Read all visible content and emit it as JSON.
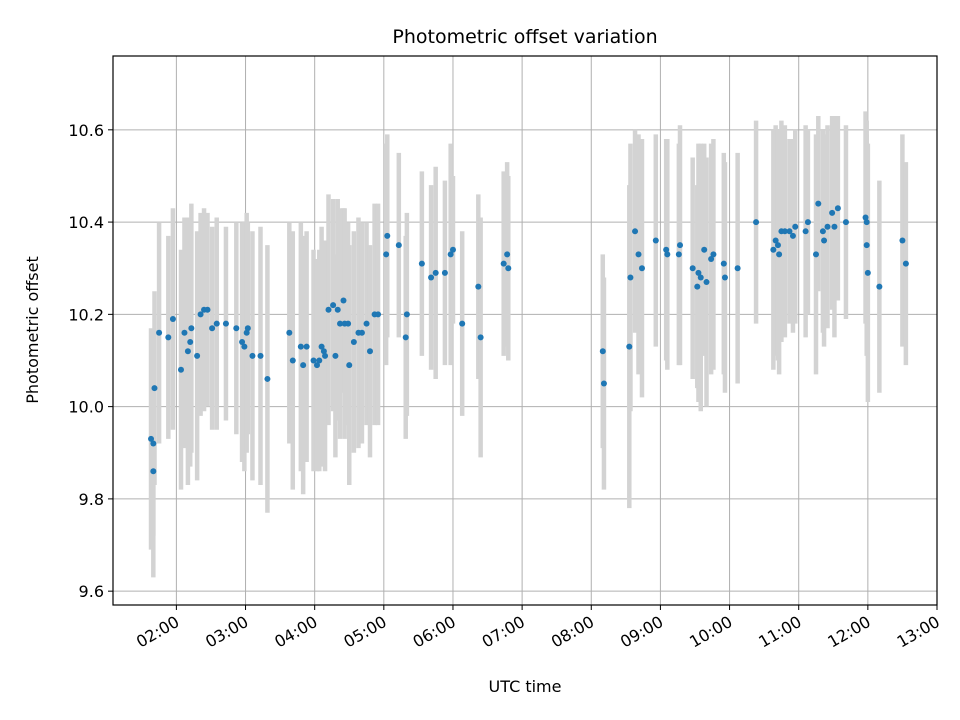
{
  "chart_data": {
    "type": "scatter",
    "title": "Photometric offset variation",
    "xlabel": "UTC time",
    "ylabel": "Photometric offset",
    "grid": true,
    "x_tick_labels": [
      "02:00",
      "03:00",
      "04:00",
      "05:00",
      "06:00",
      "07:00",
      "08:00",
      "09:00",
      "10:00",
      "11:00",
      "12:00",
      "13:00"
    ],
    "y_ticks": [
      9.6,
      9.8,
      10.0,
      10.2,
      10.4,
      10.6
    ],
    "y_tick_labels": [
      "9.6",
      "9.8",
      "10.0",
      "10.2",
      "10.4",
      "10.6"
    ],
    "xlim": [
      "01:05",
      "13:00"
    ],
    "ylim": [
      9.57,
      10.76
    ],
    "colors": {
      "points": "#1f77b4",
      "errorbars": "#d3d3d3",
      "grid": "#b0b0b0"
    },
    "series": [
      {
        "points": [
          {
            "x": "01:38",
            "y": 9.93,
            "err": 0.24
          },
          {
            "x": "01:40",
            "y": 9.92,
            "err": 0.2
          },
          {
            "x": "01:40",
            "y": 9.86,
            "err": 0.23
          },
          {
            "x": "01:41",
            "y": 10.04,
            "err": 0.21
          },
          {
            "x": "01:45",
            "y": 10.16,
            "err": 0.24
          },
          {
            "x": "01:53",
            "y": 10.15,
            "err": 0.22
          },
          {
            "x": "01:57",
            "y": 10.19,
            "err": 0.24
          },
          {
            "x": "02:04",
            "y": 10.08,
            "err": 0.26
          },
          {
            "x": "02:07",
            "y": 10.16,
            "err": 0.25
          },
          {
            "x": "02:10",
            "y": 10.12,
            "err": 0.29
          },
          {
            "x": "02:12",
            "y": 10.14,
            "err": 0.27
          },
          {
            "x": "02:13",
            "y": 10.17,
            "err": 0.27
          },
          {
            "x": "02:18",
            "y": 10.11,
            "err": 0.27
          },
          {
            "x": "02:21",
            "y": 10.2,
            "err": 0.22
          },
          {
            "x": "02:24",
            "y": 10.21,
            "err": 0.22
          },
          {
            "x": "02:27",
            "y": 10.21,
            "err": 0.21
          },
          {
            "x": "02:31",
            "y": 10.17,
            "err": 0.22
          },
          {
            "x": "02:35",
            "y": 10.18,
            "err": 0.23
          },
          {
            "x": "02:43",
            "y": 10.18,
            "err": 0.21
          },
          {
            "x": "02:52",
            "y": 10.17,
            "err": 0.23
          },
          {
            "x": "02:57",
            "y": 10.14,
            "err": 0.26
          },
          {
            "x": "02:59",
            "y": 10.13,
            "err": 0.27
          },
          {
            "x": "03:01",
            "y": 10.16,
            "err": 0.26
          },
          {
            "x": "03:02",
            "y": 10.17,
            "err": 0.23
          },
          {
            "x": "03:06",
            "y": 10.11,
            "err": 0.27
          },
          {
            "x": "03:13",
            "y": 10.11,
            "err": 0.28
          },
          {
            "x": "03:19",
            "y": 10.06,
            "err": 0.29
          },
          {
            "x": "03:38",
            "y": 10.16,
            "err": 0.24
          },
          {
            "x": "03:41",
            "y": 10.1,
            "err": 0.28
          },
          {
            "x": "03:48",
            "y": 10.13,
            "err": 0.27
          },
          {
            "x": "03:50",
            "y": 10.09,
            "err": 0.28
          },
          {
            "x": "03:53",
            "y": 10.13,
            "err": 0.25
          },
          {
            "x": "03:59",
            "y": 10.1,
            "err": 0.24
          },
          {
            "x": "04:02",
            "y": 10.09,
            "err": 0.23
          },
          {
            "x": "04:04",
            "y": 10.1,
            "err": 0.24
          },
          {
            "x": "04:06",
            "y": 10.13,
            "err": 0.26
          },
          {
            "x": "04:08",
            "y": 10.12,
            "err": 0.24
          },
          {
            "x": "04:09",
            "y": 10.11,
            "err": 0.25
          },
          {
            "x": "04:12",
            "y": 10.21,
            "err": 0.25
          },
          {
            "x": "04:16",
            "y": 10.22,
            "err": 0.23
          },
          {
            "x": "04:18",
            "y": 10.11,
            "err": 0.22
          },
          {
            "x": "04:20",
            "y": 10.21,
            "err": 0.24
          },
          {
            "x": "04:22",
            "y": 10.18,
            "err": 0.25
          },
          {
            "x": "04:25",
            "y": 10.23,
            "err": 0.2
          },
          {
            "x": "04:26",
            "y": 10.18,
            "err": 0.25
          },
          {
            "x": "04:29",
            "y": 10.18,
            "err": 0.22
          },
          {
            "x": "04:30",
            "y": 10.09,
            "err": 0.26
          },
          {
            "x": "04:34",
            "y": 10.14,
            "err": 0.24
          },
          {
            "x": "04:38",
            "y": 10.16,
            "err": 0.25
          },
          {
            "x": "04:41",
            "y": 10.16,
            "err": 0.24
          },
          {
            "x": "04:45",
            "y": 10.18,
            "err": 0.22
          },
          {
            "x": "04:48",
            "y": 10.12,
            "err": 0.23
          },
          {
            "x": "04:52",
            "y": 10.2,
            "err": 0.24
          },
          {
            "x": "04:55",
            "y": 10.2,
            "err": 0.24
          },
          {
            "x": "05:02",
            "y": 10.33,
            "err": 0.24
          },
          {
            "x": "05:03",
            "y": 10.37,
            "err": 0.22
          },
          {
            "x": "05:13",
            "y": 10.35,
            "err": 0.2
          },
          {
            "x": "05:20",
            "y": 10.2,
            "err": 0.22
          },
          {
            "x": "05:19",
            "y": 10.15,
            "err": 0.22
          },
          {
            "x": "05:33",
            "y": 10.31,
            "err": 0.2
          },
          {
            "x": "05:41",
            "y": 10.28,
            "err": 0.2
          },
          {
            "x": "05:45",
            "y": 10.29,
            "err": 0.23
          },
          {
            "x": "05:53",
            "y": 10.29,
            "err": 0.2
          },
          {
            "x": "05:58",
            "y": 10.33,
            "err": 0.24
          },
          {
            "x": "06:00",
            "y": 10.34,
            "err": 0.16
          },
          {
            "x": "06:08",
            "y": 10.18,
            "err": 0.2
          },
          {
            "x": "06:22",
            "y": 10.26,
            "err": 0.2
          },
          {
            "x": "06:24",
            "y": 10.15,
            "err": 0.26
          },
          {
            "x": "06:44",
            "y": 10.31,
            "err": 0.2
          },
          {
            "x": "06:47",
            "y": 10.33,
            "err": 0.2
          },
          {
            "x": "06:48",
            "y": 10.3,
            "err": 0.2
          },
          {
            "x": "08:10",
            "y": 10.12,
            "err": 0.21
          },
          {
            "x": "08:11",
            "y": 10.05,
            "err": 0.23
          },
          {
            "x": "08:33",
            "y": 10.13,
            "err": 0.35
          },
          {
            "x": "08:34",
            "y": 10.28,
            "err": 0.29
          },
          {
            "x": "08:38",
            "y": 10.38,
            "err": 0.22
          },
          {
            "x": "08:41",
            "y": 10.33,
            "err": 0.26
          },
          {
            "x": "08:44",
            "y": 10.3,
            "err": 0.28
          },
          {
            "x": "08:56",
            "y": 10.36,
            "err": 0.23
          },
          {
            "x": "09:05",
            "y": 10.34,
            "err": 0.24
          },
          {
            "x": "09:06",
            "y": 10.33,
            "err": 0.25
          },
          {
            "x": "09:17",
            "y": 10.35,
            "err": 0.26
          },
          {
            "x": "09:16",
            "y": 10.33,
            "err": 0.24
          },
          {
            "x": "09:28",
            "y": 10.3,
            "err": 0.24
          },
          {
            "x": "09:32",
            "y": 10.26,
            "err": 0.22
          },
          {
            "x": "09:33",
            "y": 10.29,
            "err": 0.28
          },
          {
            "x": "09:35",
            "y": 10.28,
            "err": 0.29
          },
          {
            "x": "09:38",
            "y": 10.34,
            "err": 0.23
          },
          {
            "x": "09:40",
            "y": 10.27,
            "err": 0.27
          },
          {
            "x": "09:44",
            "y": 10.32,
            "err": 0.25
          },
          {
            "x": "09:46",
            "y": 10.33,
            "err": 0.25
          },
          {
            "x": "09:55",
            "y": 10.31,
            "err": 0.24
          },
          {
            "x": "09:56",
            "y": 10.28,
            "err": 0.25
          },
          {
            "x": "10:07",
            "y": 10.3,
            "err": 0.25
          },
          {
            "x": "10:23",
            "y": 10.4,
            "err": 0.22
          },
          {
            "x": "10:38",
            "y": 10.34,
            "err": 0.26
          },
          {
            "x": "10:40",
            "y": 10.36,
            "err": 0.25
          },
          {
            "x": "10:42",
            "y": 10.35,
            "err": 0.25
          },
          {
            "x": "10:43",
            "y": 10.33,
            "err": 0.26
          },
          {
            "x": "10:45",
            "y": 10.38,
            "err": 0.24
          },
          {
            "x": "10:48",
            "y": 10.38,
            "err": 0.23
          },
          {
            "x": "10:52",
            "y": 10.38,
            "err": 0.2
          },
          {
            "x": "10:55",
            "y": 10.37,
            "err": 0.21
          },
          {
            "x": "10:57",
            "y": 10.39,
            "err": 0.21
          },
          {
            "x": "11:06",
            "y": 10.38,
            "err": 0.23
          },
          {
            "x": "11:08",
            "y": 10.4,
            "err": 0.2
          },
          {
            "x": "11:15",
            "y": 10.33,
            "err": 0.26
          },
          {
            "x": "11:17",
            "y": 10.44,
            "err": 0.19
          },
          {
            "x": "11:21",
            "y": 10.38,
            "err": 0.22
          },
          {
            "x": "11:22",
            "y": 10.36,
            "err": 0.23
          },
          {
            "x": "11:25",
            "y": 10.39,
            "err": 0.22
          },
          {
            "x": "11:29",
            "y": 10.42,
            "err": 0.21
          },
          {
            "x": "11:31",
            "y": 10.39,
            "err": 0.24
          },
          {
            "x": "11:34",
            "y": 10.43,
            "err": 0.2
          },
          {
            "x": "11:41",
            "y": 10.4,
            "err": 0.21
          },
          {
            "x": "11:58",
            "y": 10.41,
            "err": 0.23
          },
          {
            "x": "11:59",
            "y": 10.4,
            "err": 0.22
          },
          {
            "x": "11:59",
            "y": 10.35,
            "err": 0.24
          },
          {
            "x": "12:00",
            "y": 10.29,
            "err": 0.28
          },
          {
            "x": "12:10",
            "y": 10.26,
            "err": 0.23
          },
          {
            "x": "12:30",
            "y": 10.36,
            "err": 0.23
          },
          {
            "x": "12:33",
            "y": 10.31,
            "err": 0.22
          }
        ]
      }
    ]
  }
}
